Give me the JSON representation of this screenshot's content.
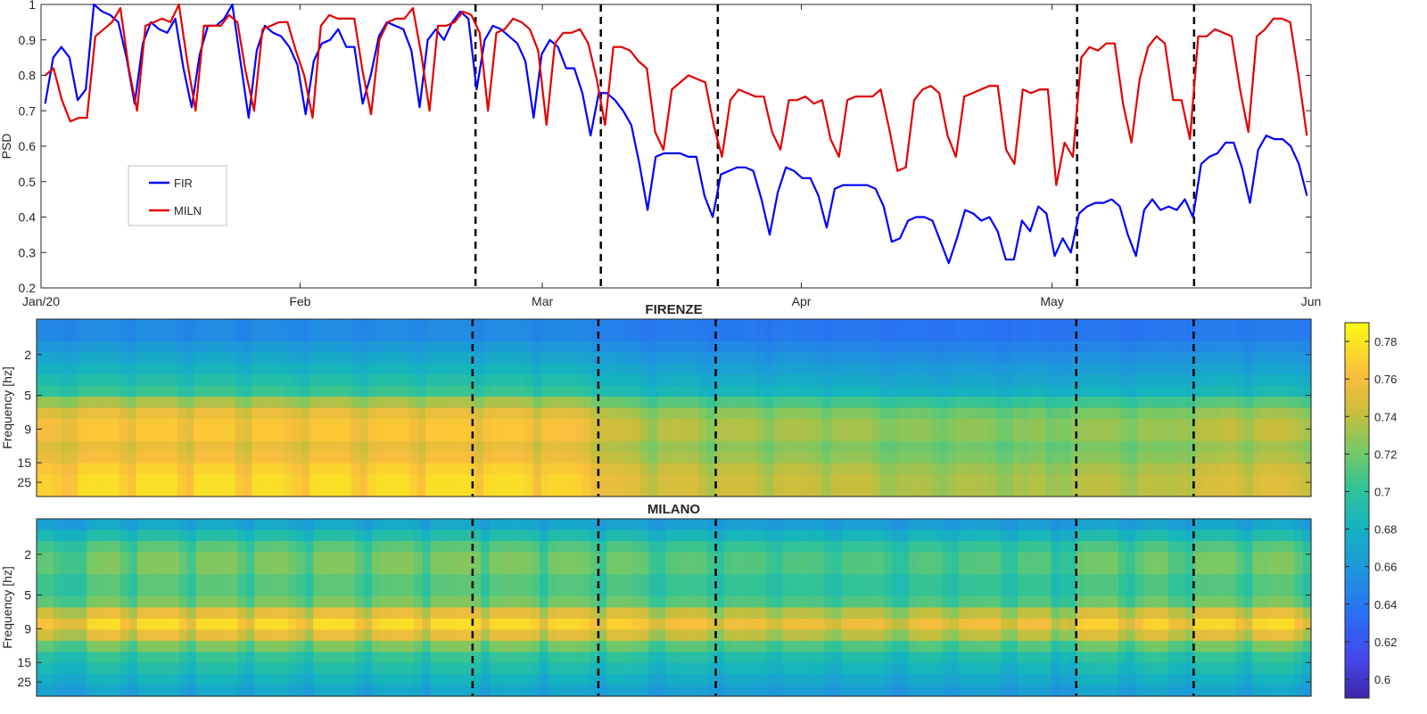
{
  "chart_data": [
    {
      "type": "line",
      "ylabel": "PSD",
      "ylim": [
        0.2,
        1.0
      ],
      "y_ticks": [
        "0.2",
        "0.3",
        "0.4",
        "0.5",
        "0.6",
        "0.7",
        "0.8",
        "0.9",
        "1"
      ],
      "x_range": [
        "2020-01-01",
        "2020-06-01"
      ],
      "x_ticks": [
        {
          "date": "2020-01-01",
          "label": "Jan/20"
        },
        {
          "date": "2020-02-01",
          "label": "Feb"
        },
        {
          "date": "2020-03-01",
          "label": "Mar"
        },
        {
          "date": "2020-04-01",
          "label": "Apr"
        },
        {
          "date": "2020-05-01",
          "label": "May"
        },
        {
          "date": "2020-06-01",
          "label": "Jun"
        }
      ],
      "legend": {
        "placement": "upper-left",
        "entries": [
          "FIR",
          "MILN"
        ]
      },
      "event_lines": [
        "2020-02-22",
        "2020-03-08",
        "2020-03-22",
        "2020-05-04",
        "2020-05-18"
      ],
      "grid": false,
      "series": [
        {
          "name": "FIR",
          "color": "#0000ff",
          "values": [
            0.72,
            0.85,
            0.88,
            0.85,
            0.73,
            0.76,
            1.0,
            0.98,
            0.97,
            0.95,
            0.85,
            0.72,
            0.89,
            0.95,
            0.93,
            0.92,
            0.96,
            0.82,
            0.71,
            0.86,
            0.94,
            0.94,
            0.96,
            1.0,
            0.84,
            0.68,
            0.87,
            0.94,
            0.92,
            0.91,
            0.88,
            0.83,
            0.69,
            0.84,
            0.89,
            0.9,
            0.93,
            0.88,
            0.88,
            0.72,
            0.8,
            0.91,
            0.95,
            0.94,
            0.93,
            0.87,
            0.71,
            0.9,
            0.93,
            0.9,
            0.95,
            0.98,
            0.96,
            0.76,
            0.9,
            0.94,
            0.93,
            0.91,
            0.89,
            0.84,
            0.68,
            0.86,
            0.9,
            0.88,
            0.82,
            0.82,
            0.75,
            0.63,
            0.75,
            0.75,
            0.73,
            0.7,
            0.66,
            0.55,
            0.42,
            0.57,
            0.58,
            0.58,
            0.58,
            0.57,
            0.57,
            0.46,
            0.4,
            0.52,
            0.53,
            0.54,
            0.54,
            0.53,
            0.45,
            0.35,
            0.47,
            0.54,
            0.53,
            0.51,
            0.51,
            0.46,
            0.37,
            0.48,
            0.49,
            0.49,
            0.49,
            0.49,
            0.48,
            0.43,
            0.33,
            0.34,
            0.39,
            0.4,
            0.4,
            0.39,
            0.33,
            0.27,
            0.34,
            0.42,
            0.41,
            0.39,
            0.4,
            0.36,
            0.28,
            0.28,
            0.39,
            0.36,
            0.43,
            0.41,
            0.29,
            0.34,
            0.3,
            0.41,
            0.43,
            0.44,
            0.44,
            0.45,
            0.43,
            0.35,
            0.29,
            0.42,
            0.45,
            0.42,
            0.43,
            0.42,
            0.45,
            0.4,
            0.55,
            0.57,
            0.58,
            0.61,
            0.61,
            0.54,
            0.44,
            0.59,
            0.63,
            0.62,
            0.62,
            0.6,
            0.55,
            0.46
          ]
        },
        {
          "name": "MILN",
          "color": "#e30000",
          "values": [
            0.8,
            0.82,
            0.73,
            0.67,
            0.68,
            0.68,
            0.91,
            0.93,
            0.95,
            0.99,
            0.82,
            0.7,
            0.94,
            0.95,
            0.96,
            0.95,
            1.0,
            0.84,
            0.7,
            0.94,
            0.94,
            0.94,
            0.97,
            0.95,
            0.81,
            0.7,
            0.93,
            0.94,
            0.95,
            0.95,
            0.87,
            0.8,
            0.68,
            0.94,
            0.97,
            0.96,
            0.96,
            0.96,
            0.81,
            0.69,
            0.9,
            0.95,
            0.96,
            0.96,
            0.99,
            0.86,
            0.7,
            0.94,
            0.94,
            0.95,
            0.98,
            0.97,
            0.92,
            0.7,
            0.92,
            0.93,
            0.96,
            0.95,
            0.93,
            0.87,
            0.66,
            0.89,
            0.92,
            0.92,
            0.93,
            0.89,
            0.79,
            0.66,
            0.88,
            0.88,
            0.87,
            0.84,
            0.82,
            0.64,
            0.59,
            0.76,
            0.78,
            0.8,
            0.79,
            0.78,
            0.66,
            0.57,
            0.73,
            0.76,
            0.75,
            0.74,
            0.74,
            0.64,
            0.59,
            0.73,
            0.73,
            0.74,
            0.72,
            0.73,
            0.62,
            0.57,
            0.73,
            0.74,
            0.74,
            0.74,
            0.76,
            0.65,
            0.53,
            0.54,
            0.73,
            0.76,
            0.77,
            0.75,
            0.63,
            0.57,
            0.74,
            0.75,
            0.76,
            0.77,
            0.77,
            0.59,
            0.55,
            0.76,
            0.75,
            0.76,
            0.76,
            0.49,
            0.61,
            0.57,
            0.85,
            0.88,
            0.87,
            0.89,
            0.89,
            0.72,
            0.61,
            0.79,
            0.88,
            0.91,
            0.89,
            0.73,
            0.73,
            0.62,
            0.91,
            0.91,
            0.93,
            0.92,
            0.91,
            0.76,
            0.64,
            0.91,
            0.93,
            0.96,
            0.96,
            0.95,
            0.8,
            0.63
          ]
        }
      ]
    },
    {
      "type": "heatmap",
      "title": "FIRENZE",
      "ylabel": "Frequency [hz]",
      "y_ticks": [
        "2",
        "5",
        "9",
        "15",
        "25"
      ],
      "colorbar": {
        "ticks": [
          "0.6",
          "0.62",
          "0.64",
          "0.66",
          "0.68",
          "0.7",
          "0.72",
          "0.74",
          "0.76",
          "0.78"
        ],
        "range": [
          0.59,
          0.79
        ],
        "colormap": "parula"
      },
      "frequency_profile": [
        0.65,
        0.65,
        0.66,
        0.67,
        0.68,
        0.69,
        0.7,
        0.73,
        0.75,
        0.76,
        0.76,
        0.75,
        0.755,
        0.765,
        0.77,
        0.77
      ],
      "day_factor": [
        0.95,
        0.96,
        0.93,
        0.85,
        0.88,
        1.03,
        1.05,
        1.04,
        1.05,
        1.05,
        0.95,
        0.87,
        1.05,
        1.05,
        1.05,
        1.05,
        1.06,
        0.92,
        0.86,
        1.05,
        1.05,
        1.05,
        1.05,
        1.06,
        0.9,
        0.85,
        1.04,
        1.05,
        1.05,
        1.04,
        0.98,
        0.93,
        0.86,
        1.04,
        1.05,
        1.05,
        1.06,
        1.04,
        0.92,
        0.86,
        1.0,
        1.04,
        1.05,
        1.05,
        1.05,
        0.96,
        0.87,
        1.04,
        1.04,
        1.04,
        1.05,
        1.06,
        1.02,
        0.87,
        1.02,
        1.04,
        1.04,
        1.04,
        1.04,
        0.99,
        0.82,
        0.97,
        1.0,
        1.0,
        0.99,
        0.96,
        0.91,
        0.78,
        0.76,
        0.75,
        0.74,
        0.72,
        0.7,
        0.6,
        0.52,
        0.65,
        0.66,
        0.67,
        0.66,
        0.66,
        0.57,
        0.48,
        0.61,
        0.63,
        0.63,
        0.63,
        0.62,
        0.56,
        0.47,
        0.58,
        0.62,
        0.61,
        0.61,
        0.6,
        0.56,
        0.47,
        0.57,
        0.58,
        0.58,
        0.58,
        0.58,
        0.52,
        0.43,
        0.44,
        0.5,
        0.5,
        0.51,
        0.5,
        0.45,
        0.4,
        0.46,
        0.52,
        0.51,
        0.5,
        0.5,
        0.47,
        0.4,
        0.4,
        0.5,
        0.47,
        0.52,
        0.51,
        0.41,
        0.46,
        0.42,
        0.52,
        0.54,
        0.55,
        0.55,
        0.55,
        0.53,
        0.46,
        0.42,
        0.54,
        0.56,
        0.53,
        0.54,
        0.53,
        0.56,
        0.51,
        0.64,
        0.66,
        0.66,
        0.69,
        0.69,
        0.63,
        0.55,
        0.67,
        0.71,
        0.7,
        0.7,
        0.68,
        0.64,
        0.57
      ]
    },
    {
      "type": "heatmap",
      "title": "MILANO",
      "ylabel": "Frequency [hz]",
      "y_ticks": [
        "2",
        "5",
        "9",
        "15",
        "25"
      ],
      "colorbar": {
        "ticks": [
          "0.6",
          "0.62",
          "0.64",
          "0.66",
          "0.68",
          "0.7",
          "0.72",
          "0.74",
          "0.76",
          "0.78"
        ],
        "range": [
          0.59,
          0.79
        ],
        "colormap": "parula"
      },
      "frequency_profile": [
        0.67,
        0.69,
        0.71,
        0.72,
        0.72,
        0.71,
        0.71,
        0.72,
        0.75,
        0.77,
        0.75,
        0.72,
        0.7,
        0.69,
        0.68,
        0.67
      ],
      "day_factor": [
        0.85,
        0.88,
        0.75,
        0.7,
        0.7,
        0.7,
        1.0,
        1.02,
        1.04,
        1.05,
        0.86,
        0.72,
        1.03,
        1.04,
        1.04,
        1.04,
        1.06,
        0.88,
        0.72,
        1.03,
        1.03,
        1.03,
        1.04,
        1.04,
        0.86,
        0.72,
        1.02,
        1.03,
        1.04,
        1.04,
        0.94,
        0.85,
        0.7,
        1.03,
        1.05,
        1.04,
        1.04,
        1.04,
        0.86,
        0.72,
        0.98,
        1.03,
        1.04,
        1.04,
        1.06,
        0.92,
        0.72,
        1.03,
        1.03,
        1.03,
        1.05,
        1.05,
        1.0,
        0.72,
        1.0,
        1.01,
        1.04,
        1.03,
        1.01,
        0.94,
        0.68,
        0.97,
        1.0,
        1.0,
        1.0,
        0.97,
        0.84,
        0.68,
        0.96,
        0.96,
        0.95,
        0.91,
        0.88,
        0.67,
        0.62,
        0.81,
        0.84,
        0.86,
        0.85,
        0.84,
        0.7,
        0.6,
        0.78,
        0.81,
        0.8,
        0.79,
        0.79,
        0.67,
        0.62,
        0.78,
        0.78,
        0.79,
        0.77,
        0.78,
        0.65,
        0.6,
        0.78,
        0.79,
        0.79,
        0.79,
        0.81,
        0.69,
        0.55,
        0.56,
        0.78,
        0.81,
        0.82,
        0.8,
        0.67,
        0.6,
        0.79,
        0.8,
        0.81,
        0.82,
        0.82,
        0.62,
        0.58,
        0.81,
        0.8,
        0.81,
        0.81,
        0.5,
        0.64,
        0.6,
        0.92,
        0.96,
        0.95,
        0.97,
        0.97,
        0.76,
        0.65,
        0.85,
        0.96,
        0.99,
        0.97,
        0.78,
        0.78,
        0.66,
        0.99,
        0.99,
        1.0,
        1.0,
        0.99,
        0.82,
        0.68,
        0.99,
        1.0,
        1.04,
        1.04,
        1.03,
        0.86,
        0.67
      ]
    }
  ]
}
